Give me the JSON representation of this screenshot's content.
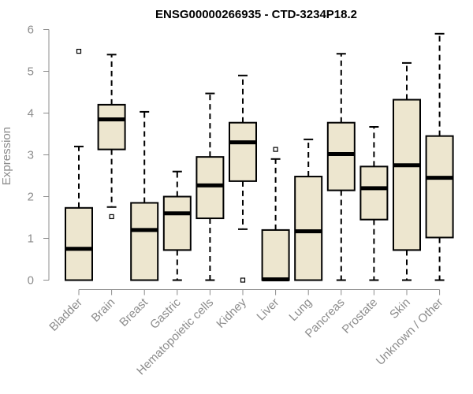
{
  "chart_data": {
    "type": "boxplot",
    "title": "ENSG00000266935 - CTD-3234P18.2",
    "xlabel": "",
    "ylabel": "Expression",
    "ylim": [
      0,
      6
    ],
    "yticks": [
      0,
      1,
      2,
      3,
      4,
      5,
      6
    ],
    "box_fill": "#ede6cf",
    "stroke": "#000000",
    "axis_color": "#8c8c8c",
    "categories": [
      "Bladder",
      "Brain",
      "Breast",
      "Gastric",
      "Hematopoietic cells",
      "Kidney",
      "Liver",
      "Lung",
      "Pancreas",
      "Prostate",
      "Skin",
      "Unknown / Other"
    ],
    "boxes": [
      {
        "label": "Bladder",
        "whisker_low": 0,
        "q1": 0,
        "median": 0.75,
        "q3": 1.73,
        "whisker_high": 3.2,
        "outliers": [
          5.48
        ]
      },
      {
        "label": "Brain",
        "whisker_low": 1.75,
        "q1": 3.13,
        "median": 3.85,
        "q3": 4.2,
        "whisker_high": 5.4,
        "outliers": [
          1.52
        ]
      },
      {
        "label": "Breast",
        "whisker_low": 0,
        "q1": 0,
        "median": 1.2,
        "q3": 1.85,
        "whisker_high": 4.03,
        "outliers": []
      },
      {
        "label": "Gastric",
        "whisker_low": 0,
        "q1": 0.72,
        "median": 1.6,
        "q3": 2.0,
        "whisker_high": 2.6,
        "outliers": []
      },
      {
        "label": "Hematopoietic cells",
        "whisker_low": 0,
        "q1": 1.48,
        "median": 2.27,
        "q3": 2.95,
        "whisker_high": 4.47,
        "outliers": []
      },
      {
        "label": "Kidney",
        "whisker_low": 1.22,
        "q1": 2.37,
        "median": 3.3,
        "q3": 3.77,
        "whisker_high": 4.9,
        "outliers": [
          0
        ]
      },
      {
        "label": "Liver",
        "whisker_low": 0,
        "q1": 0,
        "median": 0.02,
        "q3": 1.2,
        "whisker_high": 2.9,
        "outliers": [
          3.13
        ]
      },
      {
        "label": "Lung",
        "whisker_low": 0,
        "q1": 0,
        "median": 1.17,
        "q3": 2.48,
        "whisker_high": 3.37,
        "outliers": []
      },
      {
        "label": "Pancreas",
        "whisker_low": 0,
        "q1": 2.15,
        "median": 3.02,
        "q3": 3.77,
        "whisker_high": 5.42,
        "outliers": []
      },
      {
        "label": "Prostate",
        "whisker_low": 0,
        "q1": 1.45,
        "median": 2.2,
        "q3": 2.72,
        "whisker_high": 3.67,
        "outliers": []
      },
      {
        "label": "Skin",
        "whisker_low": 0,
        "q1": 0.72,
        "median": 2.75,
        "q3": 4.32,
        "whisker_high": 5.2,
        "outliers": []
      },
      {
        "label": "Unknown / Other",
        "whisker_low": 0,
        "q1": 1.02,
        "median": 2.45,
        "q3": 3.45,
        "whisker_high": 5.9,
        "outliers": []
      }
    ]
  }
}
